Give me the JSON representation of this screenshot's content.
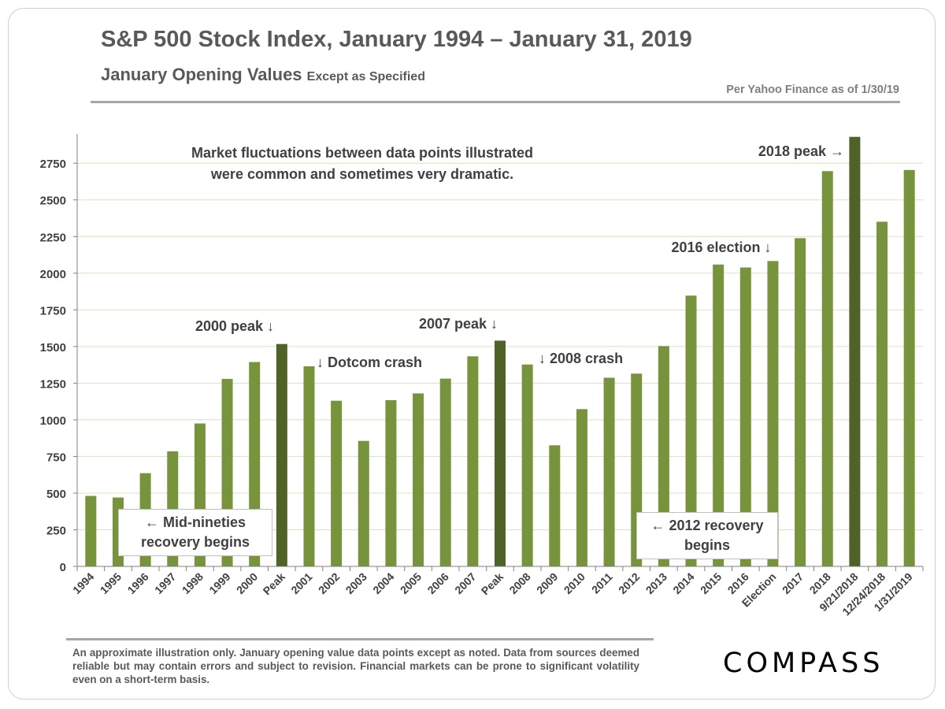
{
  "header": {
    "title": "S&P 500 Stock Index, January 1994 – January 31, 2019",
    "subtitle_main": "January Opening Values",
    "subtitle_small": "Except as Specified",
    "source_note": "Per Yahoo Finance as of 1/30/19"
  },
  "notes": {
    "fluctuation_line1": "Market fluctuations between data points illustrated",
    "fluctuation_line2": "were common and sometimes very dramatic.",
    "mid_nineties_line1": "← Mid-nineties",
    "mid_nineties_line2": "recovery begins",
    "recovery_2012_line1": "← 2012 recovery",
    "recovery_2012_line2": "begins"
  },
  "footer": {
    "disclaimer": "An approximate illustration only. January opening value data points except as noted. Data from sources deemed reliable but may contain errors and subject to revision. Financial markets can be prone to significant volatility even on a short-term basis.",
    "logo": "COMPASS"
  },
  "colors": {
    "bar": "#77933c",
    "peak_bar": "#4f6228",
    "grid": "#d7e4bd",
    "axis": "#808080",
    "text": "#404040"
  },
  "chart_data": {
    "type": "bar",
    "title": "S&P 500 Stock Index, January 1994 – January 31, 2019",
    "xlabel": "",
    "ylabel": "",
    "ylim": [
      0,
      2950
    ],
    "yticks": [
      0,
      250,
      500,
      750,
      1000,
      1250,
      1500,
      1750,
      2000,
      2250,
      2500,
      2750
    ],
    "grid": true,
    "categories": [
      "1994",
      "1995",
      "1996",
      "1997",
      "1998",
      "1999",
      "2000",
      "Peak",
      "2001",
      "2002",
      "2003",
      "2004",
      "2005",
      "2006",
      "2007",
      "Peak",
      "2008",
      "2009",
      "2010",
      "2011",
      "2012",
      "2013",
      "2014",
      "2015",
      "2016",
      "Election",
      "2017",
      "2018",
      "9/21/2018",
      "12/24/2018",
      "1/31/2019"
    ],
    "values": [
      481,
      470,
      636,
      785,
      975,
      1279,
      1394,
      1517,
      1365,
      1130,
      856,
      1134,
      1180,
      1281,
      1433,
      1540,
      1377,
      826,
      1073,
      1287,
      1315,
      1503,
      1847,
      2059,
      2039,
      2083,
      2239,
      2696,
      2930,
      2351,
      2704
    ],
    "highlight": [
      false,
      false,
      false,
      false,
      false,
      false,
      false,
      true,
      false,
      false,
      false,
      false,
      false,
      false,
      false,
      true,
      false,
      false,
      false,
      false,
      false,
      false,
      false,
      false,
      false,
      false,
      false,
      false,
      true,
      false,
      false
    ],
    "annotations": [
      {
        "text": "2000 peak ↓",
        "category_index": 7
      },
      {
        "text": "↓ Dotcom crash",
        "category_index": 8
      },
      {
        "text": "2007 peak ↓",
        "category_index": 15
      },
      {
        "text": "↓ 2008 crash",
        "category_index": 16
      },
      {
        "text": "2016 election ↓",
        "category_index": 25
      },
      {
        "text": "2018 peak →",
        "category_index": 28
      }
    ]
  }
}
